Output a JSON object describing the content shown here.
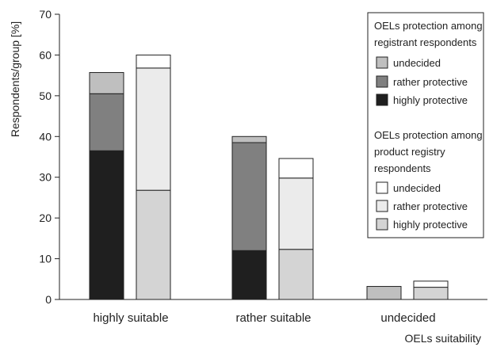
{
  "chart_data": {
    "type": "bar",
    "stacked": true,
    "categories": [
      "highly suitable",
      "rather suitable",
      "undecided"
    ],
    "ylim": [
      0,
      70
    ],
    "yticks": [
      0,
      10,
      20,
      30,
      40,
      50,
      60,
      70
    ],
    "ylabel": "Respondents/group [%]",
    "xlabel": "OELs suitability",
    "groups": [
      {
        "title": "OELs protection among registrant respondents",
        "series": [
          {
            "name": "highly protective",
            "color": "#1f1f1f",
            "values": [
              36.5,
              12,
              0
            ]
          },
          {
            "name": "rather protective",
            "color": "#808080",
            "values": [
              14,
              26.5,
              0
            ]
          },
          {
            "name": "undecided",
            "color": "#bfbfbf",
            "values": [
              5.2,
              1.5,
              3.2
            ]
          }
        ]
      },
      {
        "title": "OELs protection among product registry respondents",
        "series": [
          {
            "name": "highly protective",
            "color": "#d4d4d4",
            "values": [
              26.8,
              12.3,
              3.0
            ]
          },
          {
            "name": "rather protective",
            "color": "#ebebeb",
            "values": [
              30,
              17.5,
              0
            ]
          },
          {
            "name": "undecided",
            "color": "#ffffff",
            "values": [
              3.2,
              4.8,
              1.5
            ]
          }
        ]
      }
    ],
    "legend": {
      "placement": "top-right",
      "group1_title_lines": [
        "OELs protection among",
        "registrant respondents"
      ],
      "group1_items": [
        "undecided",
        "rather protective",
        "highly protective"
      ],
      "group2_title_lines": [
        "OELs protection among",
        "product registry",
        "respondents"
      ],
      "group2_items": [
        "undecided",
        "rather protective",
        "highly protective"
      ]
    }
  }
}
